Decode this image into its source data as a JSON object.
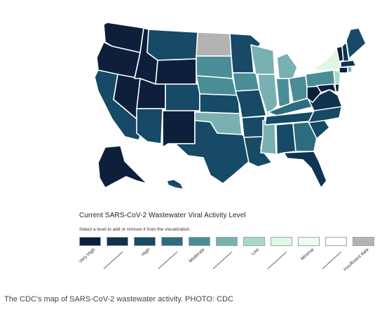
{
  "legend": {
    "title": "Current SARS-CoV-2 Wastewater Viral Activity Level",
    "hint": "Select a level to add or remove it from the visualization.",
    "swatches": [
      {
        "label": "Very High",
        "color": "#0d1f3b"
      },
      {
        "label": "",
        "color": "#0f3350"
      },
      {
        "label": "High",
        "color": "#164a66"
      },
      {
        "label": "",
        "color": "#2d6c7e"
      },
      {
        "label": "Moderate",
        "color": "#4a8d96"
      },
      {
        "label": "",
        "color": "#79b0b1"
      },
      {
        "label": "Low",
        "color": "#a9d8c8"
      },
      {
        "label": "",
        "color": "#dff7e4"
      },
      {
        "label": "Minimal",
        "color": "#effbee"
      },
      {
        "label": "",
        "color": "#ffffff"
      },
      {
        "label": "Insufficient data",
        "color": "#b3b3b3"
      }
    ]
  },
  "states": [
    {
      "id": "WA",
      "color": "#0d1f3b"
    },
    {
      "id": "OR",
      "color": "#0d1f3b"
    },
    {
      "id": "CA",
      "color": "#164a66"
    },
    {
      "id": "NV",
      "color": "#0d1f3b"
    },
    {
      "id": "ID",
      "color": "#0d1f3b"
    },
    {
      "id": "MT",
      "color": "#164a66"
    },
    {
      "id": "WY",
      "color": "#0d1f3b"
    },
    {
      "id": "UT",
      "color": "#0d1f3b"
    },
    {
      "id": "AZ",
      "color": "#164a66"
    },
    {
      "id": "CO",
      "color": "#164a66"
    },
    {
      "id": "NM",
      "color": "#0d1f3b"
    },
    {
      "id": "ND",
      "color": "#b3b3b3"
    },
    {
      "id": "SD",
      "color": "#4a8d96"
    },
    {
      "id": "NE",
      "color": "#4a8d96"
    },
    {
      "id": "KS",
      "color": "#164a66"
    },
    {
      "id": "OK",
      "color": "#79b0b1"
    },
    {
      "id": "TX",
      "color": "#164a66"
    },
    {
      "id": "MN",
      "color": "#164a66"
    },
    {
      "id": "IA",
      "color": "#4a8d96"
    },
    {
      "id": "MO",
      "color": "#164a66"
    },
    {
      "id": "AR",
      "color": "#164a66"
    },
    {
      "id": "LA",
      "color": "#164a66"
    },
    {
      "id": "WI",
      "color": "#79b0b1"
    },
    {
      "id": "IL",
      "color": "#79b0b1"
    },
    {
      "id": "MS",
      "color": "#79b0b1"
    },
    {
      "id": "MI",
      "color": "#79b0b1"
    },
    {
      "id": "IN",
      "color": "#4a8d96"
    },
    {
      "id": "OH",
      "color": "#4a8d96"
    },
    {
      "id": "KY",
      "color": "#2d6c7e"
    },
    {
      "id": "TN",
      "color": "#164a66"
    },
    {
      "id": "AL",
      "color": "#164a66"
    },
    {
      "id": "GA",
      "color": "#2d6c7e"
    },
    {
      "id": "FL",
      "color": "#0f3350"
    },
    {
      "id": "SC",
      "color": "#164a66"
    },
    {
      "id": "NC",
      "color": "#164a66"
    },
    {
      "id": "VA",
      "color": "#0f3350"
    },
    {
      "id": "WV",
      "color": "#0d1f3b"
    },
    {
      "id": "PA",
      "color": "#4a8d96"
    },
    {
      "id": "NY",
      "color": "#dff7e4"
    },
    {
      "id": "NJ",
      "color": "#a9d8c8"
    },
    {
      "id": "MD",
      "color": "#0d1f3b"
    },
    {
      "id": "DE",
      "color": "#0d1f3b"
    },
    {
      "id": "VT",
      "color": "#0d1f3b"
    },
    {
      "id": "NH",
      "color": "#0f3350"
    },
    {
      "id": "ME",
      "color": "#164a66"
    },
    {
      "id": "MA",
      "color": "#0f3350"
    },
    {
      "id": "CT",
      "color": "#0d1f3b"
    },
    {
      "id": "RI",
      "color": "#79b0b1"
    },
    {
      "id": "AK",
      "color": "#0d1f3b"
    },
    {
      "id": "HI",
      "color": "#164a66"
    }
  ],
  "caption": "The CDC's map of SARS-CoV-2 wastewater activity. PHOTO: CDC"
}
